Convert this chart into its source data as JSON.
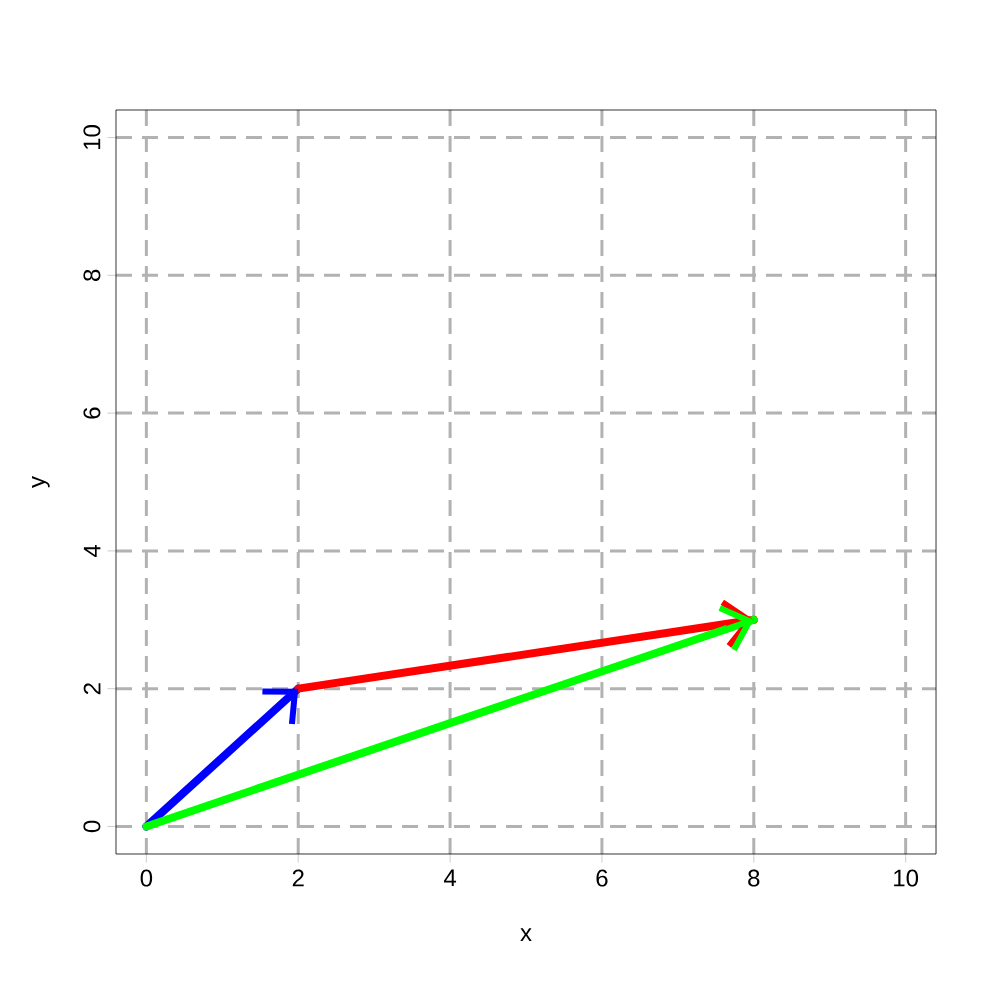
{
  "chart_data": {
    "type": "line",
    "xlabel": "x",
    "ylabel": "y",
    "xlim": [
      -0.4,
      10.4
    ],
    "ylim": [
      -0.4,
      10.4
    ],
    "xticks": [
      0,
      2,
      4,
      6,
      8,
      10
    ],
    "yticks": [
      0,
      2,
      4,
      6,
      8,
      10
    ],
    "grid": true,
    "line_style": "solid",
    "series": [
      {
        "color": "#0000ff",
        "x": [
          0,
          2
        ],
        "values": [
          0,
          2
        ]
      },
      {
        "color": "#ff0000",
        "x": [
          2,
          8
        ],
        "values": [
          2,
          3
        ]
      },
      {
        "color": "#00ff00",
        "x": [
          0,
          8
        ],
        "values": [
          0,
          3
        ]
      }
    ]
  }
}
